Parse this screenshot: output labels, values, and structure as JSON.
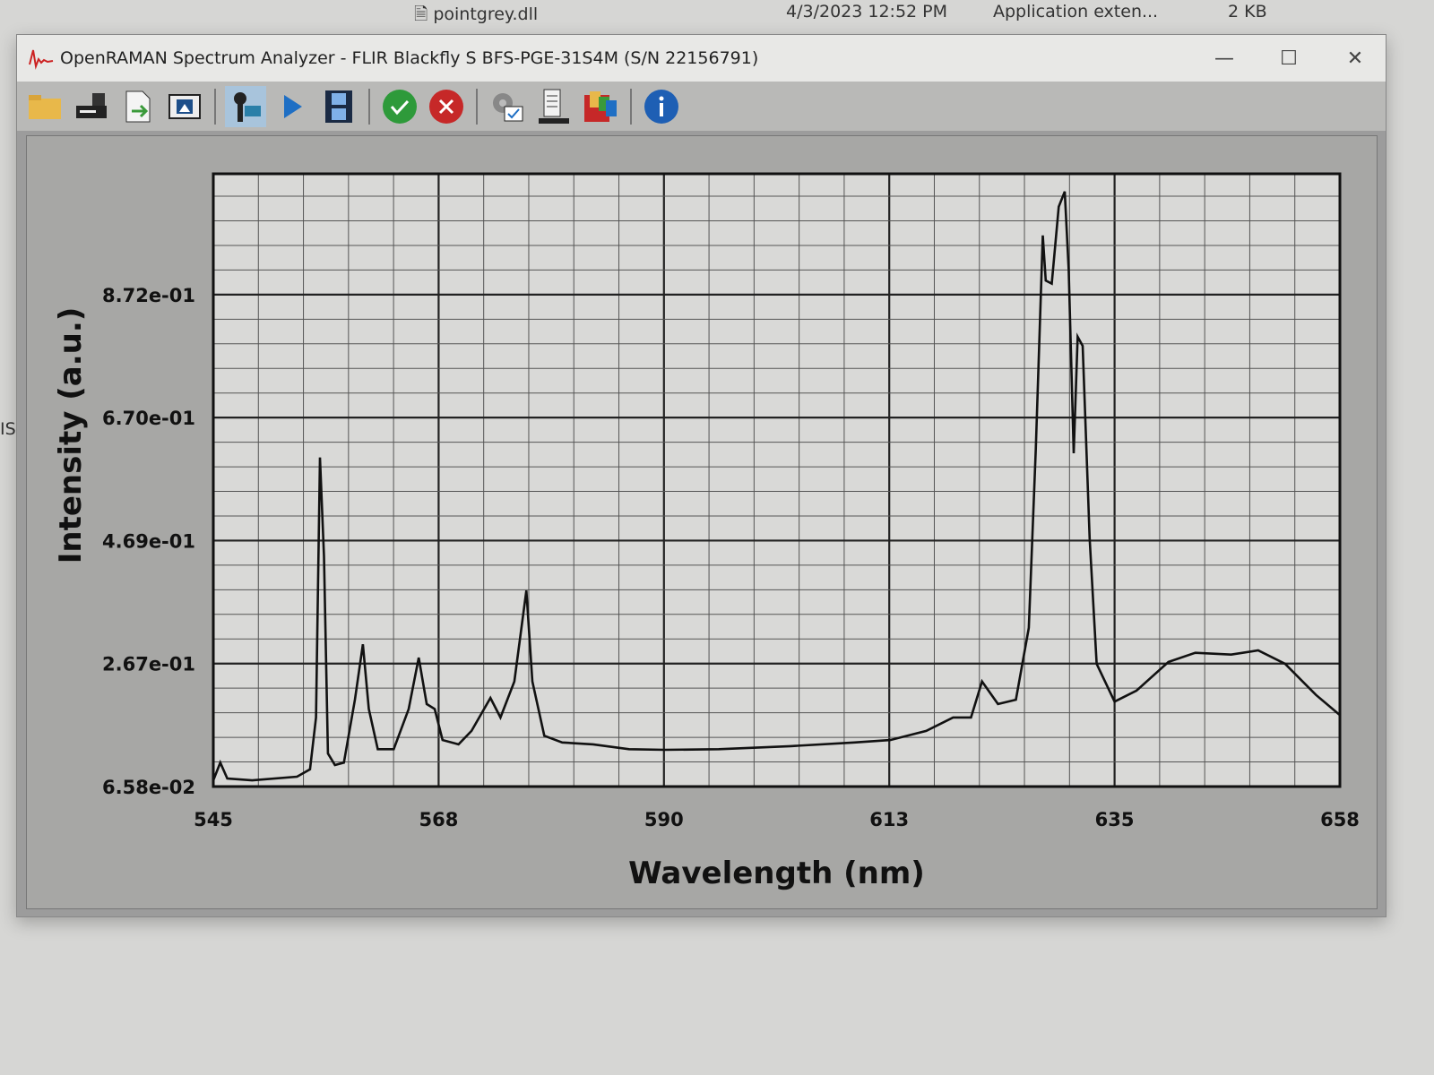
{
  "desktop": {
    "file_name": "pointgrey.dll",
    "date_modified": "4/3/2023 12:52 PM",
    "file_type": "Application exten...",
    "file_size": "2 KB",
    "left_edge_text": "IS"
  },
  "window": {
    "title": "OpenRAMAN Spectrum Analyzer - FLIR Blackfly S BFS-PGE-31S4M (S/N 22156791)",
    "controls": {
      "minimize": "—",
      "maximize": "☐",
      "close": "✕"
    }
  },
  "toolbar": {
    "buttons": [
      {
        "icon": "folder-open-icon"
      },
      {
        "icon": "save-icon"
      },
      {
        "icon": "export-icon"
      },
      {
        "icon": "image-icon"
      },
      {
        "icon": "camera-icon",
        "active": true
      },
      {
        "icon": "play-icon"
      },
      {
        "icon": "film-icon"
      },
      {
        "icon": "check-icon",
        "color": "#2e9a3a"
      },
      {
        "icon": "cancel-icon",
        "color": "#c62828"
      },
      {
        "icon": "settings-icon"
      },
      {
        "icon": "list-icon"
      },
      {
        "icon": "palette-icon"
      },
      {
        "icon": "info-icon",
        "color": "#1e5fb4"
      }
    ]
  },
  "chart_data": {
    "type": "line",
    "title": "",
    "xlabel": "Wavelength (nm)",
    "ylabel": "Intensity (a.u.)",
    "xlim": [
      545,
      658
    ],
    "ylim": [
      0.0658,
      1.07
    ],
    "grid": true,
    "x_tick_labels": [
      "545",
      "568",
      "590",
      "613",
      "635",
      "658"
    ],
    "y_tick_labels": [
      "6.58e-02",
      "2.67e-01",
      "4.69e-01",
      "6.70e-01",
      "8.72e-01"
    ],
    "line_color": "#111111",
    "series": [
      {
        "x": [
          545,
          545.7,
          546.4,
          548.9,
          553.4,
          554.7,
          555.3,
          555.7,
          556.1,
          556.5,
          557.2,
          558.1,
          559.2,
          560.0,
          560.6,
          561.5,
          563.1,
          564.6,
          565.6,
          566.4,
          567.2,
          568.0,
          569.6,
          570.9,
          572.8,
          573.8,
          575.2,
          576.4,
          577.0,
          578.2,
          580.0,
          583.1,
          586.7,
          590.3,
          595.7,
          602.9,
          609.3,
          612.9,
          616.5,
          619.2,
          621.0,
          622.1,
          623.7,
          625.5,
          626.8,
          627.5,
          628.2,
          628.5,
          629.1,
          629.8,
          630.4,
          630.8,
          631.3,
          631.7,
          632.2,
          632.9,
          633.6,
          635.4,
          637.6,
          640.8,
          643.5,
          647.1,
          649.8,
          652.5,
          655.6,
          658.0
        ],
        "y": [
          0.076,
          0.105,
          0.079,
          0.076,
          0.082,
          0.094,
          0.179,
          0.605,
          0.443,
          0.12,
          0.101,
          0.105,
          0.208,
          0.299,
          0.193,
          0.127,
          0.127,
          0.193,
          0.277,
          0.201,
          0.193,
          0.142,
          0.135,
          0.157,
          0.211,
          0.179,
          0.238,
          0.387,
          0.238,
          0.149,
          0.138,
          0.135,
          0.127,
          0.126,
          0.127,
          0.132,
          0.138,
          0.142,
          0.157,
          0.179,
          0.179,
          0.238,
          0.201,
          0.208,
          0.326,
          0.619,
          0.969,
          0.895,
          0.89,
          1.016,
          1.041,
          0.913,
          0.612,
          0.803,
          0.788,
          0.472,
          0.267,
          0.205,
          0.223,
          0.27,
          0.285,
          0.282,
          0.289,
          0.267,
          0.216,
          0.183
        ]
      }
    ]
  }
}
